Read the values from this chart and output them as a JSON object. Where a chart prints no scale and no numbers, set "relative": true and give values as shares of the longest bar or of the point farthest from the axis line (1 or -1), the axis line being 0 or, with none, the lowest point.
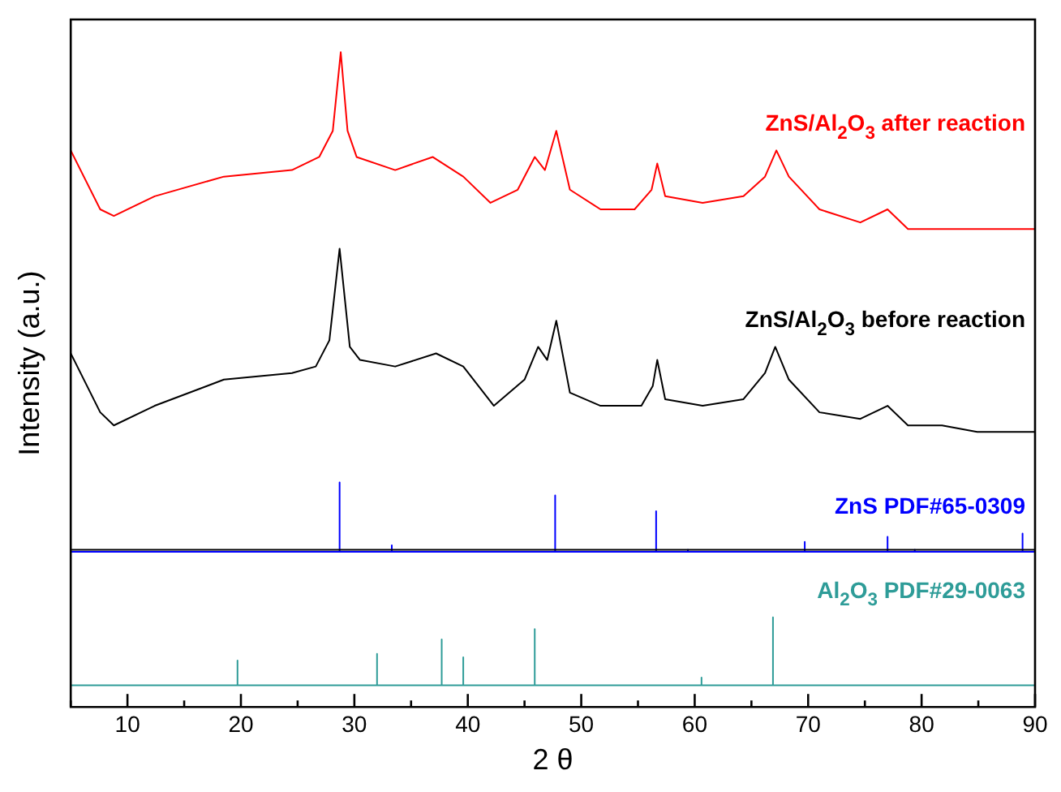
{
  "chart_data": {
    "type": "line",
    "xlabel": "2 θ",
    "ylabel": "Intensity (a.u.)",
    "relative": true,
    "legend": false,
    "marker": "none",
    "tick_labels": "x",
    "xlim": [
      5,
      90
    ],
    "xticks": [
      {
        "value": 5,
        "label": null
      },
      10,
      {
        "value": 15,
        "label": null
      },
      20,
      {
        "value": 25,
        "label": null
      },
      30,
      {
        "value": 35,
        "label": null
      },
      40,
      {
        "value": 45,
        "label": null
      },
      50,
      {
        "value": 55,
        "label": null
      },
      60,
      {
        "value": 65,
        "label": null
      },
      70,
      {
        "value": 75,
        "label": null
      },
      80,
      {
        "value": 85,
        "label": null
      },
      90
    ],
    "ref_lines": [
      {
        "axis": "y",
        "value": 0.24,
        "color": "#000000"
      }
    ],
    "series": [
      {
        "name": "ZnS/Al$_{2}$O$_{3}$ after reaction",
        "color": "#ff0000",
        "x": [
          5,
          7.6,
          8.8,
          12.4,
          18.5,
          24.5,
          26.9,
          28.1,
          28.8,
          29.4,
          30.2,
          33.6,
          36.9,
          39.6,
          42.0,
          44.4,
          45.9,
          46.8,
          47.8,
          49.0,
          51.7,
          54.7,
          56.2,
          56.7,
          57.4,
          60.7,
          64.3,
          66.2,
          67.2,
          68.3,
          71.0,
          74.6,
          77.0,
          78.8,
          81.8,
          84.9,
          90
        ],
        "values": [
          0.85,
          0.76,
          0.75,
          0.78,
          0.81,
          0.82,
          0.84,
          0.88,
          1.0,
          0.88,
          0.84,
          0.82,
          0.84,
          0.81,
          0.77,
          0.79,
          0.84,
          0.82,
          0.88,
          0.79,
          0.76,
          0.76,
          0.79,
          0.83,
          0.78,
          0.77,
          0.78,
          0.81,
          0.85,
          0.81,
          0.76,
          0.74,
          0.76,
          0.73,
          0.73,
          0.73,
          0.73
        ]
      },
      {
        "name": "ZnS/Al$_{2}$O$_{3}$ before reaction",
        "color": "#000000",
        "x": [
          5,
          7.6,
          8.8,
          12.4,
          18.5,
          24.5,
          26.6,
          27.8,
          28.7,
          29.6,
          30.5,
          33.6,
          37.2,
          39.6,
          42.3,
          45.0,
          46.2,
          47.0,
          47.8,
          49.0,
          51.7,
          55.3,
          56.3,
          56.7,
          57.4,
          60.7,
          64.3,
          66.2,
          67.1,
          68.3,
          71.0,
          74.6,
          77.0,
          78.8,
          81.8,
          84.9,
          90
        ],
        "values": [
          0.54,
          0.45,
          0.43,
          0.46,
          0.5,
          0.51,
          0.52,
          0.56,
          0.7,
          0.55,
          0.53,
          0.52,
          0.54,
          0.52,
          0.46,
          0.5,
          0.55,
          0.53,
          0.59,
          0.48,
          0.46,
          0.46,
          0.49,
          0.53,
          0.47,
          0.46,
          0.47,
          0.51,
          0.55,
          0.5,
          0.45,
          0.44,
          0.46,
          0.43,
          0.43,
          0.42,
          0.42
        ]
      },
      {
        "name": "ZnS PDF#65-0309",
        "color": "#0000ff",
        "x": [
          5,
          28.7,
          28.7,
          28.7,
          33.3,
          33.3,
          33.3,
          47.7,
          47.7,
          47.7,
          56.6,
          56.6,
          56.6,
          59.4,
          59.4,
          59.4,
          69.7,
          69.7,
          69.7,
          77.0,
          77.0,
          77.0,
          79.4,
          79.4,
          79.4,
          88.9,
          88.9,
          88.9,
          90
        ],
        "values": [
          0.237,
          0.237,
          0.343,
          0.237,
          0.237,
          0.247,
          0.237,
          0.237,
          0.323,
          0.237,
          0.237,
          0.299,
          0.237,
          0.237,
          0.24,
          0.237,
          0.237,
          0.252,
          0.237,
          0.237,
          0.26,
          0.237,
          0.237,
          0.24,
          0.237,
          0.237,
          0.265,
          0.237,
          0.237
        ]
      },
      {
        "name": "Al$_{2}$O$_{3}$ PDF#29-0063",
        "color": "#2e9c98",
        "x": [
          5,
          19.7,
          19.7,
          19.7,
          32.0,
          32.0,
          32.0,
          37.7,
          37.7,
          37.7,
          39.6,
          39.6,
          39.6,
          45.9,
          45.9,
          45.9,
          60.6,
          60.6,
          60.6,
          66.9,
          66.9,
          66.9,
          90
        ],
        "values": [
          0.033,
          0.033,
          0.071,
          0.033,
          0.033,
          0.081,
          0.033,
          0.033,
          0.103,
          0.033,
          0.033,
          0.076,
          0.033,
          0.033,
          0.119,
          0.033,
          0.033,
          0.045,
          0.033,
          0.033,
          0.137,
          0.033,
          0.033
        ]
      }
    ]
  }
}
